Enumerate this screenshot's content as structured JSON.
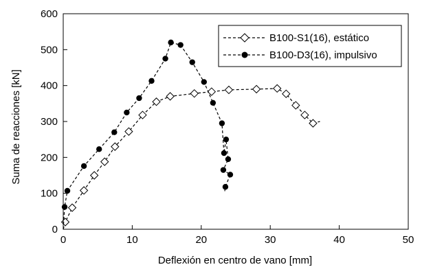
{
  "chart_data": {
    "type": "scatter",
    "title": "",
    "xlabel": "Deflexión en centro de vano [mm]",
    "ylabel": "Suma de reacciones [kN]",
    "xlim": [
      0,
      50
    ],
    "ylim": [
      0,
      600
    ],
    "x_ticks": [
      0,
      10,
      20,
      30,
      40,
      50
    ],
    "y_ticks": [
      0,
      100,
      200,
      300,
      400,
      500,
      600
    ],
    "grid": false,
    "legend_position": "top-right",
    "series": [
      {
        "name": "B100-S1(16), estático",
        "marker": "open-diamond",
        "line": "dashed",
        "color": "#000000",
        "x": [
          0.0,
          0.3,
          1.3,
          3.0,
          4.5,
          6.0,
          7.5,
          9.5,
          11.5,
          13.5,
          15.5,
          19.0,
          21.5,
          24.0,
          28.0,
          31.0,
          32.3,
          33.7,
          35.0,
          36.2,
          37.2
        ],
        "y": [
          0,
          20,
          60,
          108,
          150,
          188,
          230,
          272,
          318,
          355,
          370,
          378,
          383,
          388,
          390,
          392,
          377,
          345,
          318,
          295,
          300
        ]
      },
      {
        "name": "B100-D3(16), impulsivo",
        "marker": "filled-circle",
        "line": "dashed",
        "color": "#000000",
        "x": [
          0.0,
          0.2,
          0.6,
          3.0,
          5.2,
          7.4,
          9.2,
          11.0,
          12.8,
          14.8,
          15.6,
          17.0,
          18.7,
          20.4,
          21.7,
          23.0,
          23.3,
          23.6,
          23.9,
          23.2,
          24.2,
          23.5,
          23.4
        ],
        "y": [
          0,
          62,
          107,
          176,
          223,
          270,
          325,
          365,
          413,
          475,
          520,
          513,
          465,
          410,
          352,
          295,
          212,
          250,
          195,
          165,
          152,
          118,
          105
        ]
      }
    ]
  }
}
